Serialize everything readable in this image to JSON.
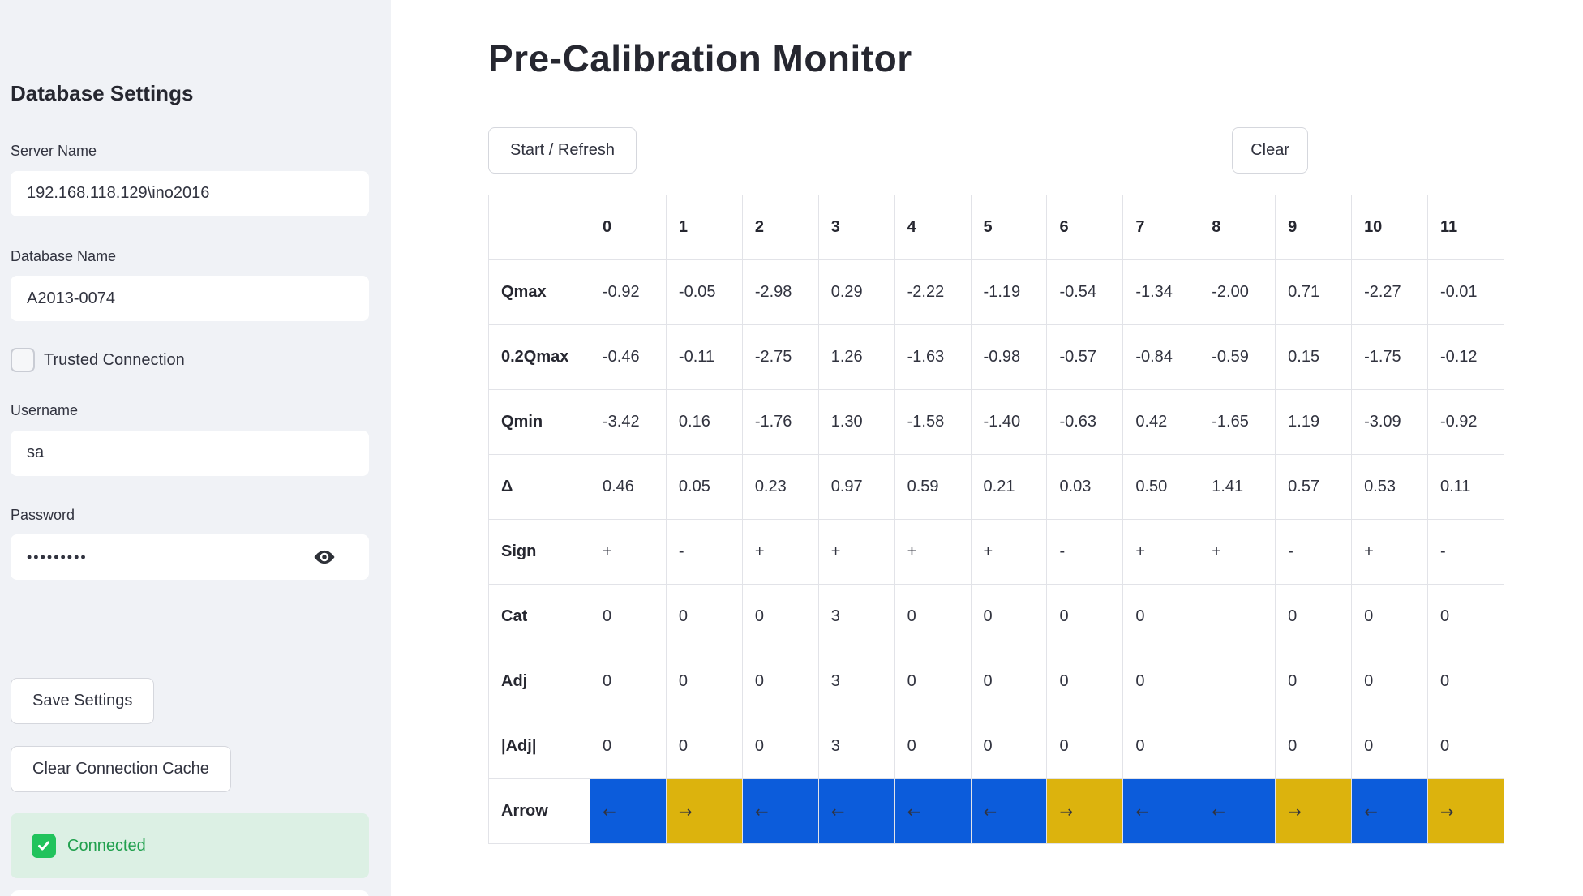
{
  "colors": {
    "sidebar_bg": "#f0f2f6",
    "arrow_blue": "#0c5cdb",
    "arrow_gold": "#dcb30d",
    "success_bg": "#dcf0e4",
    "success_text": "#21a04e",
    "check_green": "#21c35c"
  },
  "sidebar": {
    "title": "Database Settings",
    "server": {
      "label": "Server Name",
      "value": "192.168.118.129\\ino2016"
    },
    "database": {
      "label": "Database Name",
      "value": "A2013-0074"
    },
    "trusted": {
      "label": "Trusted Connection",
      "checked": false
    },
    "username": {
      "label": "Username",
      "value": "sa"
    },
    "password": {
      "label": "Password",
      "value": "•••••••••"
    },
    "save_button": "Save Settings",
    "clear_cache_button": "Clear Connection Cache",
    "status": "Connected"
  },
  "main": {
    "title": "Pre-Calibration Monitor",
    "start_button": "Start / Refresh",
    "clear_button": "Clear"
  },
  "table": {
    "columns": [
      "0",
      "1",
      "2",
      "3",
      "4",
      "5",
      "6",
      "7",
      "8",
      "9",
      "10",
      "11"
    ],
    "rows": [
      {
        "label": "Qmax",
        "values": [
          "-0.92",
          "-0.05",
          "-2.98",
          "0.29",
          "-2.22",
          "-1.19",
          "-0.54",
          "-1.34",
          "-2.00",
          "0.71",
          "-2.27",
          "-0.01"
        ]
      },
      {
        "label": "0.2Qmax",
        "values": [
          "-0.46",
          "-0.11",
          "-2.75",
          "1.26",
          "-1.63",
          "-0.98",
          "-0.57",
          "-0.84",
          "-0.59",
          "0.15",
          "-1.75",
          "-0.12"
        ]
      },
      {
        "label": "Qmin",
        "values": [
          "-3.42",
          "0.16",
          "-1.76",
          "1.30",
          "-1.58",
          "-1.40",
          "-0.63",
          "0.42",
          "-1.65",
          "1.19",
          "-3.09",
          "-0.92"
        ]
      },
      {
        "label": "Δ",
        "values": [
          "0.46",
          "0.05",
          "0.23",
          "0.97",
          "0.59",
          "0.21",
          "0.03",
          "0.50",
          "1.41",
          "0.57",
          "0.53",
          "0.11"
        ]
      },
      {
        "label": "Sign",
        "values": [
          "+",
          "-",
          "+",
          "+",
          "+",
          "+",
          "-",
          "+",
          "+",
          "-",
          "+",
          "-"
        ]
      },
      {
        "label": "Cat",
        "values": [
          "0",
          "0",
          "0",
          "3",
          "0",
          "0",
          "0",
          "0",
          "",
          "0",
          "0",
          "0"
        ]
      },
      {
        "label": "Adj",
        "values": [
          "0",
          "0",
          "0",
          "3",
          "0",
          "0",
          "0",
          "0",
          "",
          "0",
          "0",
          "0"
        ]
      },
      {
        "label": "|Adj|",
        "values": [
          "0",
          "0",
          "0",
          "3",
          "0",
          "0",
          "0",
          "0",
          "",
          "0",
          "0",
          "0"
        ]
      },
      {
        "label": "Arrow",
        "type": "arrow",
        "values": [
          "left",
          "right",
          "left",
          "left",
          "left",
          "left",
          "right",
          "left",
          "left",
          "right",
          "left",
          "right"
        ]
      }
    ],
    "arrow_glyphs": {
      "left": "←",
      "right": "→"
    }
  }
}
